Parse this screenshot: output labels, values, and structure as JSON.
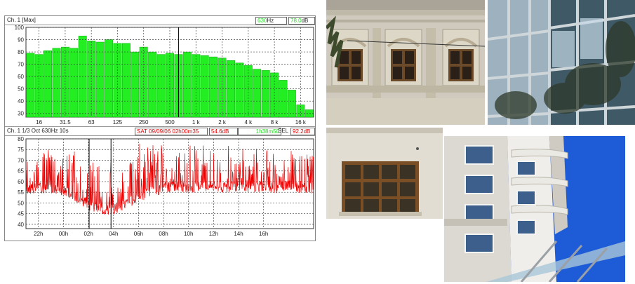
{
  "spectrum_panel": {
    "header": {
      "channel": "Ch.  1 [Max]",
      "freq_value": "630",
      "freq_unit": "Hz",
      "level_value": "78.0",
      "level_unit": "dB"
    },
    "colors": {
      "bars": "#22ee22",
      "bar_edge": "#11aa11",
      "grid": "#444444"
    }
  },
  "timeline_panel": {
    "header": {
      "channel": "Ch.  1  1/3 Oct 630Hz 10s",
      "datetime": "SAT 09/09/06 02h00m35",
      "level": "54.6dB",
      "duration": "1h38m50",
      "sel_label": "SEL",
      "sel_value": "92.2dB"
    },
    "colors": {
      "trace": "#ee0000",
      "grid": "#444444"
    }
  },
  "chart_data": [
    {
      "type": "bar",
      "title": "",
      "xlabel": "",
      "ylabel": "",
      "ylim": [
        27,
        100
      ],
      "yticks": [
        30,
        40,
        50,
        60,
        70,
        80,
        90,
        100
      ],
      "xtick_labels": [
        "16",
        "31.5",
        "63",
        "125",
        "250",
        "500",
        "1 k",
        "2 k",
        "4 k",
        "8 k",
        "16 k"
      ],
      "categories": [
        "12.5",
        "16",
        "20",
        "25",
        "31.5",
        "40",
        "50",
        "63",
        "80",
        "100",
        "125",
        "160",
        "200",
        "250",
        "315",
        "400",
        "500",
        "630",
        "800",
        "1 k",
        "1.25 k",
        "1.6 k",
        "2 k",
        "2.5 k",
        "3.15 k",
        "4 k",
        "5 k",
        "6.3 k",
        "8 k",
        "10 k",
        "12.5 k",
        "16 k",
        "20 k"
      ],
      "values": [
        79,
        78,
        81,
        83,
        84,
        83,
        93,
        89,
        88,
        90,
        87,
        87,
        80,
        84,
        80,
        78,
        79,
        78,
        80,
        78,
        77,
        76,
        75,
        73,
        71,
        69,
        66,
        65,
        63,
        57,
        49,
        37,
        33
      ],
      "cursor_category": "630",
      "grid": true
    },
    {
      "type": "line",
      "title": "",
      "xlabel": "",
      "ylabel": "",
      "ylim": [
        38,
        80
      ],
      "yticks": [
        40,
        45,
        50,
        55,
        60,
        65,
        70,
        75,
        80
      ],
      "xlim": [
        -3,
        20
      ],
      "xtick_labels": [
        "22h",
        "00h",
        "02h",
        "04h",
        "06h",
        "08h",
        "10h",
        "12h",
        "14h",
        "16h"
      ],
      "xtick_hours": [
        -2,
        0,
        2,
        4,
        6,
        8,
        10,
        12,
        14,
        16
      ],
      "series": [
        {
          "hours": [
            -3,
            -2,
            -1,
            0,
            0.5,
            1,
            1.5,
            2,
            2.5,
            3,
            3.5,
            4,
            4.5,
            5,
            5.5,
            6,
            6.5,
            7,
            7.5,
            8,
            9,
            10,
            11,
            12,
            13,
            14,
            15,
            16,
            17,
            18,
            19,
            20
          ],
          "baseline_db": [
            56,
            57,
            57,
            56,
            55,
            53,
            51,
            49,
            48,
            47,
            47,
            47,
            48,
            50,
            51,
            53,
            54,
            55,
            56,
            57,
            58,
            57,
            58,
            58,
            57,
            58,
            57,
            58,
            57,
            58,
            57,
            57
          ],
          "peak_db": [
            79,
            78,
            77,
            77,
            76,
            74,
            72,
            68,
            70,
            68,
            69,
            70,
            70,
            71,
            73,
            79,
            76,
            77,
            78,
            78,
            77,
            78,
            77,
            78,
            77,
            77,
            76,
            76,
            75,
            75,
            74,
            73
          ]
        }
      ],
      "cursor_hours": [
        2.05,
        3.8
      ],
      "grid": true
    }
  ],
  "photos": [
    {
      "subject": "historic facade with arched windows",
      "sky": "#dcdcd8",
      "wall": "#d8d2c2"
    },
    {
      "subject": "glass curtain wall reflecting trees",
      "sky": "#8fa9bf",
      "wall": "#5c6f7d"
    },
    {
      "subject": "wooden framed window in plaster wall",
      "sky": "#e5e2da",
      "wall": "#e2ddd2"
    },
    {
      "subject": "white high-rise with balconies against blue sky",
      "sky": "#1d5ed8",
      "wall": "#ebe9e4"
    }
  ]
}
